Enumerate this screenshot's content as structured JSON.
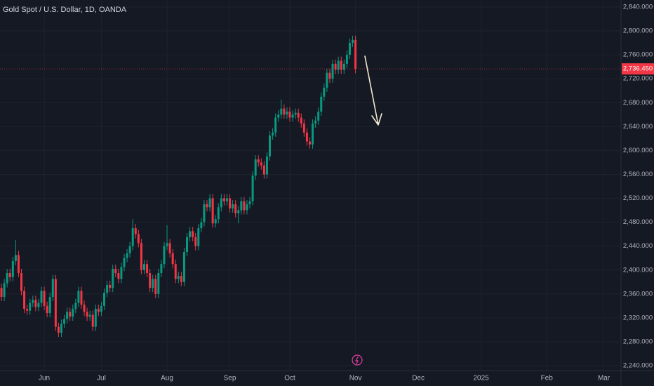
{
  "chart_data": {
    "type": "candlestick",
    "title": "Gold Spot / U.S. Dollar, 1D, OANDA",
    "categories": [
      null,
      null,
      null,
      null,
      null,
      null,
      null,
      null,
      null,
      null,
      null,
      null,
      null,
      null,
      null,
      null,
      null,
      null,
      null,
      null,
      null,
      null,
      null,
      null,
      null,
      null,
      null,
      null,
      null,
      null,
      null,
      null,
      null,
      null,
      null,
      null,
      null,
      null,
      null,
      null,
      null,
      null,
      null,
      null,
      null,
      null,
      null,
      null,
      null,
      null,
      null,
      null,
      null,
      null,
      null,
      null,
      null,
      null,
      null,
      null,
      null,
      null,
      null,
      null,
      null,
      null,
      null,
      null,
      null,
      null,
      null,
      null,
      null,
      null,
      null,
      null,
      null,
      null,
      null,
      null,
      null,
      null,
      null,
      null,
      null,
      null,
      null,
      null,
      null,
      null,
      null,
      null,
      null,
      null,
      null,
      null,
      null,
      null,
      null,
      null,
      null,
      null,
      null,
      null,
      null,
      null,
      null,
      null,
      null,
      null,
      null,
      null,
      null,
      null,
      null,
      null,
      null,
      null,
      null,
      null,
      null,
      null,
      null,
      null,
      null
    ],
    "open": [
      2370,
      2355,
      2378,
      2395,
      2388,
      2415,
      2425,
      2395,
      2365,
      2335,
      2332,
      2345,
      2350,
      2338,
      2345,
      2365,
      2340,
      2328,
      2355,
      2385,
      2305,
      2295,
      2310,
      2318,
      2330,
      2322,
      2335,
      2345,
      2365,
      2342,
      2330,
      2322,
      2325,
      2305,
      2335,
      2330,
      2340,
      2362,
      2375,
      2370,
      2402,
      2395,
      2385,
      2405,
      2420,
      2428,
      2440,
      2470,
      2460,
      2445,
      2400,
      2410,
      2395,
      2370,
      2385,
      2360,
      2395,
      2410,
      2440,
      2445,
      2428,
      2410,
      2385,
      2390,
      2380,
      2430,
      2455,
      2465,
      2455,
      2440,
      2470,
      2480,
      2510,
      2505,
      2520,
      2478,
      2485,
      2505,
      2520,
      2515,
      2520,
      2503,
      2510,
      2495,
      2500,
      2515,
      2500,
      2510,
      2515,
      2558,
      2585,
      2580,
      2575,
      2560,
      2590,
      2625,
      2630,
      2655,
      2660,
      2670,
      2660,
      2665,
      2655,
      2660,
      2663,
      2655,
      2645,
      2630,
      2615,
      2610,
      2645,
      2650,
      2665,
      2690,
      2705,
      2730,
      2720,
      2745,
      2735,
      2750,
      2735,
      2745,
      2760,
      2780,
      2785
    ],
    "high": [
      2377,
      2385,
      2402,
      2402,
      2422,
      2450,
      2432,
      2402,
      2372,
      2342,
      2352,
      2357,
      2357,
      2352,
      2372,
      2372,
      2347,
      2362,
      2392,
      2392,
      2312,
      2317,
      2325,
      2337,
      2337,
      2342,
      2352,
      2372,
      2372,
      2349,
      2337,
      2332,
      2332,
      2342,
      2342,
      2347,
      2369,
      2382,
      2382,
      2409,
      2409,
      2402,
      2412,
      2427,
      2435,
      2447,
      2485,
      2477,
      2467,
      2452,
      2417,
      2417,
      2402,
      2392,
      2392,
      2402,
      2417,
      2447,
      2475,
      2452,
      2435,
      2417,
      2397,
      2397,
      2437,
      2462,
      2472,
      2472,
      2462,
      2477,
      2487,
      2517,
      2517,
      2527,
      2527,
      2492,
      2512,
      2527,
      2527,
      2527,
      2527,
      2517,
      2517,
      2507,
      2522,
      2522,
      2517,
      2522,
      2565,
      2592,
      2592,
      2587,
      2582,
      2597,
      2632,
      2637,
      2662,
      2667,
      2685,
      2677,
      2672,
      2672,
      2667,
      2670,
      2670,
      2662,
      2652,
      2637,
      2622,
      2652,
      2657,
      2672,
      2697,
      2712,
      2737,
      2737,
      2752,
      2752,
      2757,
      2757,
      2752,
      2767,
      2787,
      2792,
      2792
    ],
    "low": [
      2348,
      2348,
      2371,
      2381,
      2381,
      2408,
      2388,
      2358,
      2328,
      2325,
      2325,
      2338,
      2331,
      2331,
      2338,
      2333,
      2321,
      2321,
      2348,
      2298,
      2288,
      2288,
      2303,
      2311,
      2315,
      2315,
      2328,
      2338,
      2335,
      2323,
      2315,
      2315,
      2298,
      2298,
      2323,
      2323,
      2333,
      2355,
      2363,
      2363,
      2388,
      2378,
      2378,
      2398,
      2413,
      2421,
      2433,
      2453,
      2438,
      2393,
      2393,
      2388,
      2363,
      2363,
      2353,
      2353,
      2388,
      2403,
      2433,
      2421,
      2403,
      2378,
      2378,
      2373,
      2373,
      2423,
      2448,
      2448,
      2433,
      2433,
      2463,
      2473,
      2498,
      2498,
      2471,
      2471,
      2478,
      2498,
      2508,
      2508,
      2496,
      2496,
      2488,
      2478,
      2493,
      2493,
      2493,
      2503,
      2508,
      2551,
      2573,
      2568,
      2553,
      2553,
      2583,
      2618,
      2623,
      2648,
      2653,
      2653,
      2653,
      2648,
      2648,
      2653,
      2648,
      2638,
      2623,
      2608,
      2603,
      2603,
      2638,
      2643,
      2658,
      2683,
      2698,
      2713,
      2713,
      2728,
      2728,
      2728,
      2728,
      2738,
      2753,
      2773,
      2729
    ],
    "close": [
      2355,
      2378,
      2395,
      2388,
      2415,
      2425,
      2395,
      2365,
      2335,
      2332,
      2345,
      2350,
      2338,
      2345,
      2365,
      2340,
      2328,
      2355,
      2385,
      2305,
      2295,
      2310,
      2318,
      2330,
      2322,
      2335,
      2345,
      2365,
      2342,
      2330,
      2322,
      2325,
      2305,
      2335,
      2330,
      2340,
      2362,
      2375,
      2370,
      2402,
      2395,
      2385,
      2405,
      2420,
      2428,
      2440,
      2470,
      2460,
      2445,
      2400,
      2410,
      2395,
      2370,
      2385,
      2360,
      2395,
      2410,
      2440,
      2445,
      2428,
      2410,
      2385,
      2390,
      2380,
      2430,
      2455,
      2465,
      2455,
      2440,
      2470,
      2480,
      2510,
      2505,
      2520,
      2478,
      2485,
      2505,
      2520,
      2515,
      2520,
      2503,
      2510,
      2495,
      2500,
      2515,
      2500,
      2510,
      2515,
      2558,
      2585,
      2580,
      2575,
      2560,
      2590,
      2625,
      2630,
      2655,
      2660,
      2670,
      2660,
      2665,
      2655,
      2660,
      2663,
      2655,
      2645,
      2630,
      2615,
      2610,
      2645,
      2650,
      2665,
      2690,
      2705,
      2730,
      2720,
      2745,
      2735,
      2750,
      2735,
      2745,
      2760,
      2780,
      2785,
      2736.45
    ],
    "up_color": "#089981",
    "down_color": "#f23645",
    "last_price": {
      "value": 2736.45,
      "label": "2,736.450"
    },
    "xlim": [
      -0.5,
      217
    ],
    "xticks": [
      {
        "value": 15,
        "label": "Jun"
      },
      {
        "value": 35,
        "label": "Jul"
      },
      {
        "value": 58,
        "label": "Aug"
      },
      {
        "value": 80,
        "label": "Sep"
      },
      {
        "value": 101,
        "label": "Oct"
      },
      {
        "value": 124,
        "label": "Nov"
      },
      {
        "value": 146,
        "label": "Dec"
      },
      {
        "value": 168,
        "label": "2025"
      },
      {
        "value": 191,
        "label": "Feb"
      },
      {
        "value": 211,
        "label": "Mar"
      }
    ],
    "ylim": [
      2231.8,
      2851.7
    ],
    "yticks": [
      {
        "value": 2240,
        "label": "2,240.000"
      },
      {
        "value": 2280,
        "label": "2,280.000"
      },
      {
        "value": 2320,
        "label": "2,320.000"
      },
      {
        "value": 2360,
        "label": "2,360.000"
      },
      {
        "value": 2400,
        "label": "2,400.000"
      },
      {
        "value": 2440,
        "label": "2,440.000"
      },
      {
        "value": 2480,
        "label": "2,480.000"
      },
      {
        "value": 2520,
        "label": "2,520.000"
      },
      {
        "value": 2560,
        "label": "2,560.000"
      },
      {
        "value": 2600,
        "label": "2,600.000"
      },
      {
        "value": 2640,
        "label": "2,640.000"
      },
      {
        "value": 2680,
        "label": "2,680.000"
      },
      {
        "value": 2720,
        "label": "2,720.000"
      },
      {
        "value": 2760,
        "label": "2,760.000"
      },
      {
        "value": 2800,
        "label": "2,800.000"
      },
      {
        "value": 2840,
        "label": "2,840.000"
      }
    ],
    "grid": true
  }
}
